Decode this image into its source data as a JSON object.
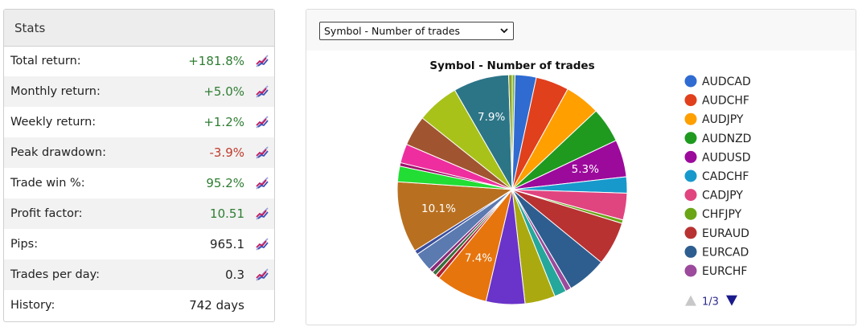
{
  "stats": {
    "title": "Stats",
    "rows": [
      {
        "label": "Total return:",
        "value": "+181.8%",
        "tone": "pos",
        "icon": "chart-icon"
      },
      {
        "label": "Monthly return:",
        "value": "+5.0%",
        "tone": "pos",
        "icon": "chart-icon"
      },
      {
        "label": "Weekly return:",
        "value": "+1.2%",
        "tone": "pos",
        "icon": "chart-icon"
      },
      {
        "label": "Peak drawdown:",
        "value": "-3.9%",
        "tone": "neg",
        "icon": "chart-icon"
      },
      {
        "label": "Trade win %:",
        "value": "95.2%",
        "tone": "pos",
        "icon": "chart-icon"
      },
      {
        "label": "Profit factor:",
        "value": "10.51",
        "tone": "pos",
        "icon": "chart-icon"
      },
      {
        "label": "Pips:",
        "value": "965.1",
        "tone": "neutral",
        "icon": "chart-icon"
      },
      {
        "label": "Trades per day:",
        "value": "0.3",
        "tone": "neutral",
        "icon": "chart-icon"
      },
      {
        "label": "History:",
        "value": "742 days",
        "tone": "neutral",
        "icon": null
      }
    ]
  },
  "chart_select": {
    "selected": "Symbol - Number of trades"
  },
  "chart_data": {
    "type": "pie",
    "title": "Symbol - Number of trades",
    "slices": [
      {
        "name": "",
        "value": 0.4,
        "color": "#7cb342",
        "label": ""
      },
      {
        "name": "AUDCAD",
        "value": 3.0,
        "color": "#2f6bd1",
        "label": ""
      },
      {
        "name": "AUDCHF",
        "value": 4.7,
        "color": "#e0401c",
        "label": ""
      },
      {
        "name": "AUDJPY",
        "value": 5.0,
        "color": "#ff9f00",
        "label": ""
      },
      {
        "name": "AUDNZD",
        "value": 5.0,
        "color": "#1f9a1f",
        "label": ""
      },
      {
        "name": "AUDUSD",
        "value": 5.3,
        "color": "#9c0a9c",
        "label": "5.3%"
      },
      {
        "name": "CADCHF",
        "value": 2.3,
        "color": "#1799cc",
        "label": ""
      },
      {
        "name": "CADJPY",
        "value": 3.8,
        "color": "#e0457f",
        "label": ""
      },
      {
        "name": "CHFJPY",
        "value": 0.5,
        "color": "#6aa516",
        "label": ""
      },
      {
        "name": "EURAUD",
        "value": 6.2,
        "color": "#b83232",
        "label": ""
      },
      {
        "name": "EURCAD",
        "value": 5.6,
        "color": "#2e5e8f",
        "label": ""
      },
      {
        "name": "EURCHF",
        "value": 0.8,
        "color": "#9b4a9c",
        "label": ""
      },
      {
        "name": "",
        "value": 1.7,
        "color": "#26a79b",
        "label": ""
      },
      {
        "name": "",
        "value": 4.3,
        "color": "#aaaa10",
        "label": ""
      },
      {
        "name": "",
        "value": 5.5,
        "color": "#6a33c9",
        "label": ""
      },
      {
        "name": "",
        "value": 7.4,
        "color": "#e6750e",
        "label": "7.4%"
      },
      {
        "name": "",
        "value": 0.6,
        "color": "#b5202e",
        "label": ""
      },
      {
        "name": "",
        "value": 0.6,
        "color": "#3a6e3a",
        "label": ""
      },
      {
        "name": "",
        "value": 0.6,
        "color": "#8a2a7a",
        "label": ""
      },
      {
        "name": "",
        "value": 2.7,
        "color": "#5a7ab0",
        "label": ""
      },
      {
        "name": "",
        "value": 0.6,
        "color": "#3b4f9e",
        "label": ""
      },
      {
        "name": "",
        "value": 10.1,
        "color": "#b87020",
        "label": "10.1%"
      },
      {
        "name": "",
        "value": 2.2,
        "color": "#22dd33",
        "label": ""
      },
      {
        "name": "",
        "value": 0.5,
        "color": "#a0126b",
        "label": ""
      },
      {
        "name": "",
        "value": 2.7,
        "color": "#ee2e9e",
        "label": ""
      },
      {
        "name": "",
        "value": 4.3,
        "color": "#a05530",
        "label": ""
      },
      {
        "name": "",
        "value": 6.0,
        "color": "#a8c21a",
        "label": ""
      },
      {
        "name": "",
        "value": 7.9,
        "color": "#2c7587",
        "label": "7.9%"
      },
      {
        "name": "",
        "value": 0.5,
        "color": "#8aa020",
        "label": ""
      }
    ],
    "legend": {
      "placement": "right",
      "items": [
        "AUDCAD",
        "AUDCHF",
        "AUDJPY",
        "AUDNZD",
        "AUDUSD",
        "CADCHF",
        "CADJPY",
        "CHFJPY",
        "EURAUD",
        "EURCAD",
        "EURCHF"
      ],
      "colors": [
        "#2f6bd1",
        "#e0401c",
        "#ff9f00",
        "#1f9a1f",
        "#9c0a9c",
        "#1799cc",
        "#e0457f",
        "#6aa516",
        "#b83232",
        "#2e5e8f",
        "#9b4a9c"
      ],
      "page": "1/3"
    }
  }
}
